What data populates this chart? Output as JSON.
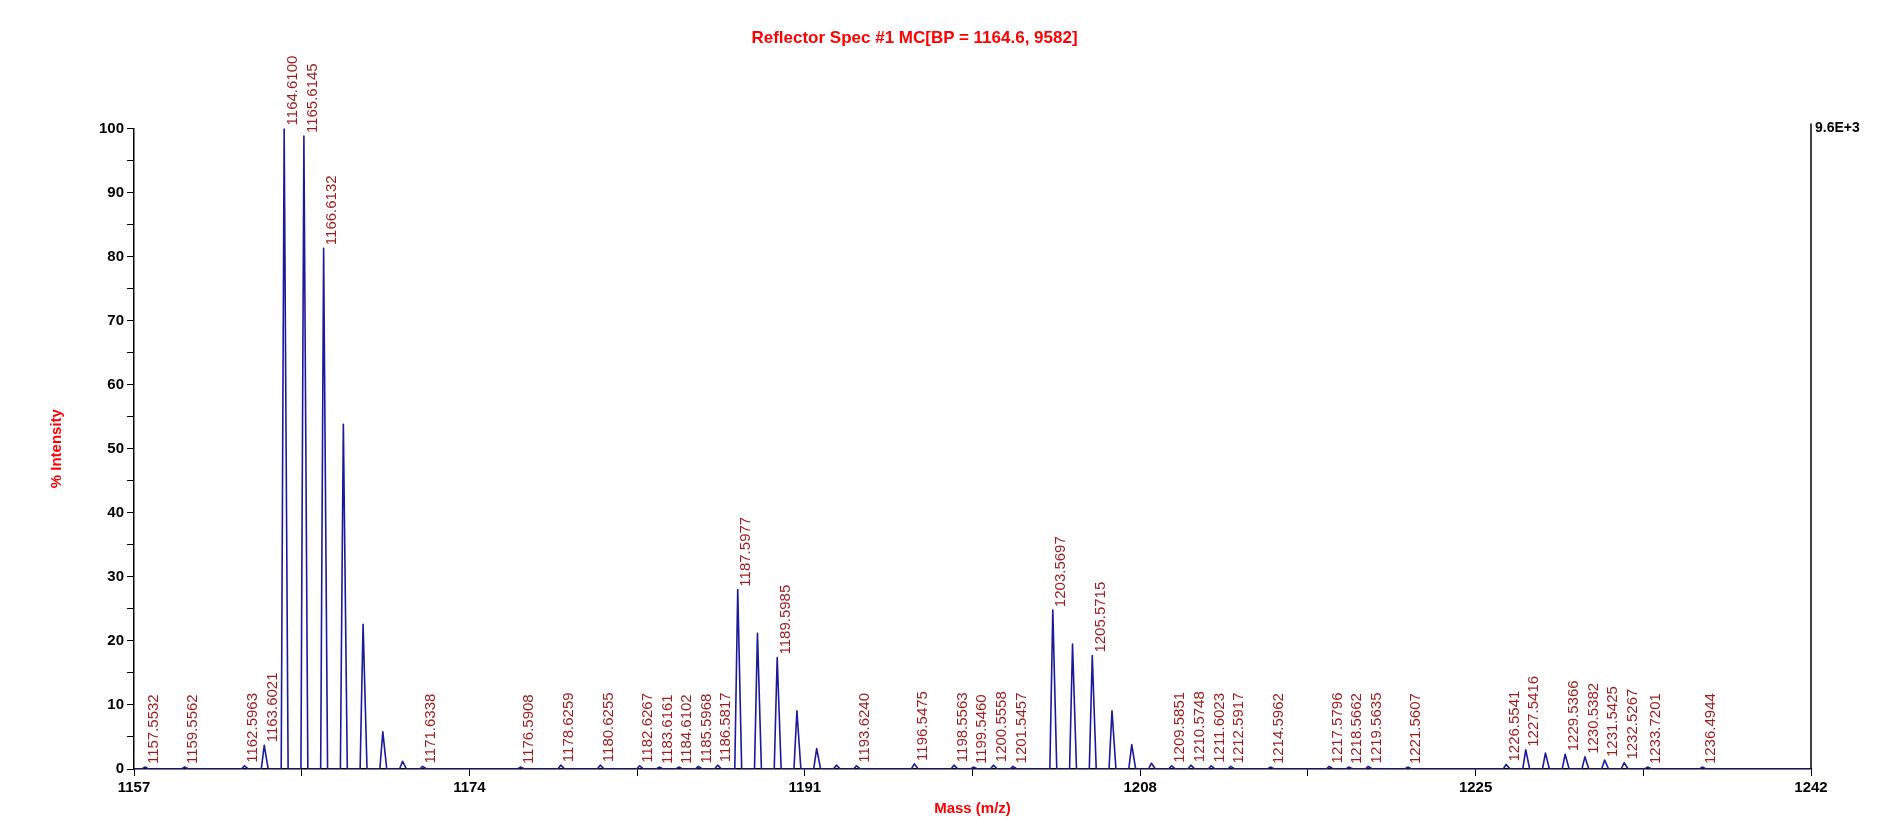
{
  "chart_data": {
    "type": "line",
    "title": "Reflector Spec #1 MC[BP = 1164.6, 9582]",
    "xlabel": "Mass (m/z)",
    "ylabel": "% Intensity",
    "xlim": [
      1157,
      1242
    ],
    "xticks": [
      1157,
      {
        "value": 1165.5,
        "label": null
      },
      1174,
      {
        "value": 1182.5,
        "label": null
      },
      1191,
      {
        "value": 1199.5,
        "label": null
      },
      1208,
      {
        "value": 1216.5,
        "label": null
      },
      1225,
      {
        "value": 1233.5,
        "label": null
      },
      1242
    ],
    "ylim": [
      0,
      100
    ],
    "yticks": [
      0,
      {
        "value": 5,
        "label": null
      },
      10,
      {
        "value": 15,
        "label": null
      },
      20,
      {
        "value": 25,
        "label": null
      },
      30,
      {
        "value": 35,
        "label": null
      },
      40,
      {
        "value": 45,
        "label": null
      },
      50,
      {
        "value": 55,
        "label": null
      },
      60,
      {
        "value": 65,
        "label": null
      },
      70,
      {
        "value": 75,
        "label": null
      },
      80,
      {
        "value": 85,
        "label": null
      },
      90,
      {
        "value": 95,
        "label": null
      },
      100
    ],
    "grid": false,
    "legend": false,
    "marker": "none",
    "series": [
      {
        "color": "#1a1a9a",
        "x": [
          1157,
          1157.4,
          1157.55,
          1157.75,
          1159.41,
          1159.56,
          1159.76,
          1162.45,
          1162.6,
          1162.8,
          1163.45,
          1163.6,
          1163.8,
          1164.46,
          1164.61,
          1164.81,
          1165.46,
          1165.61,
          1165.81,
          1166.46,
          1166.61,
          1166.81,
          1167.46,
          1167.61,
          1167.81,
          1168.46,
          1168.61,
          1168.81,
          1169.46,
          1169.61,
          1169.81,
          1170.46,
          1170.61,
          1170.81,
          1171.48,
          1171.63,
          1171.83,
          1176.44,
          1176.59,
          1176.79,
          1178.48,
          1178.63,
          1178.83,
          1180.48,
          1180.63,
          1180.83,
          1182.48,
          1182.63,
          1182.83,
          1183.47,
          1183.62,
          1183.82,
          1184.46,
          1184.61,
          1184.81,
          1185.45,
          1185.6,
          1185.8,
          1186.43,
          1186.58,
          1186.78,
          1187.45,
          1187.6,
          1187.8,
          1188.45,
          1188.6,
          1188.8,
          1189.45,
          1189.6,
          1189.8,
          1190.45,
          1190.6,
          1190.8,
          1191.45,
          1191.6,
          1191.8,
          1192.45,
          1192.6,
          1192.8,
          1193.47,
          1193.62,
          1193.82,
          1196.4,
          1196.55,
          1196.75,
          1198.41,
          1198.56,
          1198.76,
          1199.4,
          1199.55,
          1199.75,
          1200.41,
          1200.56,
          1200.76,
          1201.4,
          1201.55,
          1201.75,
          1203.42,
          1203.57,
          1203.77,
          1204.42,
          1204.57,
          1204.77,
          1205.42,
          1205.57,
          1205.77,
          1206.42,
          1206.57,
          1206.77,
          1207.42,
          1207.57,
          1207.77,
          1208.42,
          1208.57,
          1208.77,
          1209.44,
          1209.59,
          1209.79,
          1210.42,
          1210.57,
          1210.77,
          1211.45,
          1211.6,
          1211.8,
          1212.44,
          1212.59,
          1212.79,
          1214.45,
          1214.6,
          1214.8,
          1217.43,
          1217.58,
          1217.78,
          1218.42,
          1218.57,
          1218.77,
          1219.41,
          1219.56,
          1219.76,
          1221.41,
          1221.56,
          1221.76,
          1226.4,
          1226.55,
          1226.75,
          1227.39,
          1227.54,
          1227.74,
          1228.39,
          1228.54,
          1228.74,
          1229.39,
          1229.54,
          1229.74,
          1230.39,
          1230.54,
          1230.74,
          1231.39,
          1231.54,
          1231.74,
          1232.38,
          1232.53,
          1232.73,
          1233.57,
          1233.72,
          1233.92,
          1236.34,
          1236.49,
          1236.69,
          1242
        ],
        "values": [
          0,
          0,
          0.3,
          0,
          0,
          0.3,
          0,
          0,
          0.5,
          0,
          0,
          3.7,
          0,
          0,
          100,
          0,
          0,
          98.8,
          0,
          0,
          81.3,
          0,
          0,
          53.8,
          0,
          0,
          22.6,
          0,
          0,
          5.8,
          0,
          0,
          1.2,
          0,
          0,
          0.4,
          0,
          0,
          0.3,
          0,
          0,
          0.6,
          0,
          0,
          0.6,
          0,
          0,
          0.5,
          0,
          0,
          0.3,
          0,
          0,
          0.3,
          0,
          0,
          0.4,
          0,
          0,
          0.6,
          0,
          0,
          28,
          0,
          0,
          21.2,
          0,
          0,
          17.4,
          0,
          0,
          9.1,
          0,
          0,
          3.2,
          0,
          0,
          0.6,
          0,
          0,
          0.5,
          0,
          0,
          0.8,
          0,
          0,
          0.6,
          0,
          0,
          0.3,
          0,
          0,
          0.6,
          0,
          0,
          0.4,
          0,
          0,
          24.8,
          0,
          0,
          19.5,
          0,
          0,
          17.7,
          0,
          0,
          9.1,
          0,
          0,
          3.8,
          0,
          0,
          0.9,
          0,
          0,
          0.5,
          0,
          0,
          0.6,
          0,
          0,
          0.5,
          0,
          0,
          0.4,
          0,
          0,
          0.3,
          0,
          0,
          0.4,
          0,
          0,
          0.3,
          0,
          0,
          0.4,
          0,
          0,
          0.3,
          0,
          0,
          0.7,
          0,
          0,
          3,
          0,
          0,
          2.5,
          0,
          0,
          2.3,
          0,
          0,
          1.9,
          0,
          0,
          1.4,
          0,
          0,
          1,
          0,
          0,
          0.3,
          0,
          0,
          0.3,
          0,
          0
        ]
      }
    ],
    "annotations": [
      "9.6E+3",
      {
        "text": "1157.5532",
        "x": 1157.55,
        "y": 0.3
      },
      {
        "text": "1159.5562",
        "x": 1159.56,
        "y": 0.3
      },
      {
        "text": "1162.5963",
        "x": 1162.6,
        "y": 0.5
      },
      {
        "text": "1163.6021",
        "x": 1163.6,
        "y": 3.7
      },
      {
        "text": "1164.6100",
        "x": 1164.61,
        "y": 100
      },
      {
        "text": "1165.6145",
        "x": 1165.61,
        "y": 98.8
      },
      {
        "text": "1166.6132",
        "x": 1166.61,
        "y": 81.3
      },
      {
        "text": "1171.6338",
        "x": 1171.63,
        "y": 0.4
      },
      {
        "text": "1176.5908",
        "x": 1176.59,
        "y": 0.3
      },
      {
        "text": "1178.6259",
        "x": 1178.63,
        "y": 0.6
      },
      {
        "text": "1180.6255",
        "x": 1180.63,
        "y": 0.6
      },
      {
        "text": "1182.6267",
        "x": 1182.63,
        "y": 0.5
      },
      {
        "text": "1183.6161",
        "x": 1183.62,
        "y": 0.3
      },
      {
        "text": "1184.6102",
        "x": 1184.61,
        "y": 0.3
      },
      {
        "text": "1185.5968",
        "x": 1185.6,
        "y": 0.4
      },
      {
        "text": "1186.5817",
        "x": 1186.58,
        "y": 0.6
      },
      {
        "text": "1187.5977",
        "x": 1187.6,
        "y": 28
      },
      {
        "text": "1189.5985",
        "x": 1189.6,
        "y": 17.4
      },
      {
        "text": "1193.6240",
        "x": 1193.62,
        "y": 0.5
      },
      {
        "text": "1196.5475",
        "x": 1196.55,
        "y": 0.8
      },
      {
        "text": "1198.5563",
        "x": 1198.56,
        "y": 0.6
      },
      {
        "text": "1199.5460",
        "x": 1199.55,
        "y": 0.3
      },
      {
        "text": "1200.5558",
        "x": 1200.56,
        "y": 0.6
      },
      {
        "text": "1201.5457",
        "x": 1201.55,
        "y": 0.4
      },
      {
        "text": "1203.5697",
        "x": 1203.57,
        "y": 24.8
      },
      {
        "text": "1205.5715",
        "x": 1205.57,
        "y": 17.7
      },
      {
        "text": "1209.5851",
        "x": 1209.59,
        "y": 0.5
      },
      {
        "text": "1210.5748",
        "x": 1210.57,
        "y": 0.6
      },
      {
        "text": "1211.6023",
        "x": 1211.6,
        "y": 0.5
      },
      {
        "text": "1212.5917",
        "x": 1212.59,
        "y": 0.4
      },
      {
        "text": "1214.5962",
        "x": 1214.6,
        "y": 0.3
      },
      {
        "text": "1217.5796",
        "x": 1217.58,
        "y": 0.4
      },
      {
        "text": "1218.5662",
        "x": 1218.57,
        "y": 0.3
      },
      {
        "text": "1219.5635",
        "x": 1219.56,
        "y": 0.4
      },
      {
        "text": "1221.5607",
        "x": 1221.56,
        "y": 0.3
      },
      {
        "text": "1226.5541",
        "x": 1226.55,
        "y": 0.7
      },
      {
        "text": "1227.5416",
        "x": 1227.54,
        "y": 3
      },
      {
        "text": "1229.5366",
        "x": 1229.54,
        "y": 2.3
      },
      {
        "text": "1230.5382",
        "x": 1230.54,
        "y": 1.9
      },
      {
        "text": "1231.5425",
        "x": 1231.54,
        "y": 1.4
      },
      {
        "text": "1232.5267",
        "x": 1232.53,
        "y": 1
      },
      {
        "text": "1233.7201",
        "x": 1233.72,
        "y": 0.3
      },
      {
        "text": "1236.4944",
        "x": 1236.49,
        "y": 0.3
      }
    ]
  }
}
